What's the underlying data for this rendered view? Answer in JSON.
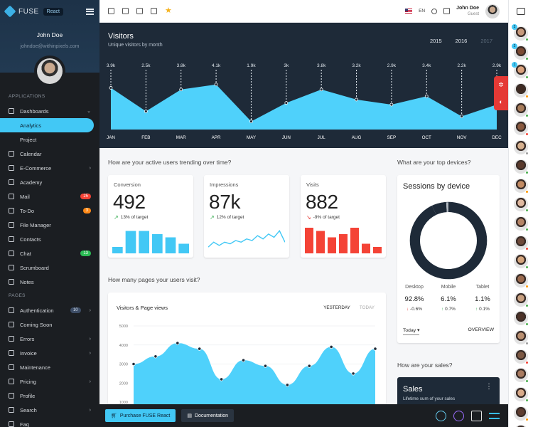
{
  "sidebar": {
    "brand": "FUSE",
    "badge": "React",
    "user_name": "John Doe",
    "user_email": "johndoe@withinpixels.com",
    "section_applications": "APPLICATIONS",
    "section_pages": "PAGES",
    "items": [
      {
        "label": "Dashboards",
        "icon": "dashboard-icon",
        "chevron": "⌄"
      },
      {
        "label": "Analytics",
        "active": true
      },
      {
        "label": "Project"
      },
      {
        "label": "Calendar",
        "icon": "calendar-icon"
      },
      {
        "label": "E-Commerce",
        "icon": "cart-icon",
        "chevron": "›"
      },
      {
        "label": "Academy",
        "icon": "school-icon"
      },
      {
        "label": "Mail",
        "icon": "mail-icon",
        "count": "25"
      },
      {
        "label": "To-Do",
        "icon": "checkbox-icon",
        "count": "3"
      },
      {
        "label": "File Manager",
        "icon": "folder-icon"
      },
      {
        "label": "Contacts",
        "icon": "contacts-icon"
      },
      {
        "label": "Chat",
        "icon": "chat-icon",
        "count": "13"
      },
      {
        "label": "Scrumboard",
        "icon": "board-icon"
      },
      {
        "label": "Notes",
        "icon": "note-icon"
      },
      {
        "label": "Authentication",
        "icon": "lock-icon",
        "count": "10",
        "chevron": "›"
      },
      {
        "label": "Coming Soon",
        "icon": "alarm-icon"
      },
      {
        "label": "Errors",
        "icon": "error-icon",
        "chevron": "›"
      },
      {
        "label": "Invoice",
        "icon": "receipt-icon",
        "chevron": "›"
      },
      {
        "label": "Maintenance",
        "icon": "build-icon"
      },
      {
        "label": "Pricing",
        "icon": "dollar-icon",
        "chevron": "›"
      },
      {
        "label": "Profile",
        "icon": "person-icon"
      },
      {
        "label": "Search",
        "icon": "search-icon",
        "chevron": "›"
      },
      {
        "label": "Faq",
        "icon": "help-icon"
      }
    ]
  },
  "topbar": {
    "lang": "EN",
    "user_name": "John Doe",
    "user_role": "Guest",
    "icons": [
      "calendar-icon",
      "mail-icon",
      "contacts-icon",
      "tasks-icon",
      "star-icon"
    ]
  },
  "visitors": {
    "title": "Visitors",
    "subtitle": "Unique visitors by month",
    "years": [
      "2015",
      "2016",
      "2017"
    ],
    "active_year": "2016"
  },
  "chart_data": [
    {
      "type": "area",
      "categories": [
        "JAN",
        "FEB",
        "MAR",
        "APR",
        "MAY",
        "JUN",
        "JUL",
        "AUG",
        "SEP",
        "OCT",
        "NOV",
        "DEC"
      ],
      "value_labels": [
        "3.9k",
        "2.5k",
        "3.8k",
        "4.1k",
        "1.9k",
        "3k",
        "3.8k",
        "3.2k",
        "2.9k",
        "3.4k",
        "2.2k",
        "2.9k"
      ],
      "values": [
        3.9,
        2.5,
        3.8,
        4.1,
        1.9,
        3.0,
        3.8,
        3.2,
        2.9,
        3.4,
        2.2,
        2.9
      ],
      "color": "#4fd1fb"
    },
    {
      "type": "bar",
      "values": [
        2,
        7,
        7,
        6,
        5,
        3
      ],
      "color": "#42c8f5"
    },
    {
      "type": "line",
      "values": [
        3,
        6,
        4,
        6,
        5,
        7,
        6,
        8,
        7,
        10,
        8,
        11,
        9,
        13,
        6
      ],
      "color": "#42c8f5"
    },
    {
      "type": "bar",
      "values": [
        8,
        7,
        5,
        6,
        8,
        3,
        2
      ],
      "color": "#f44336"
    },
    {
      "type": "pie",
      "categories": [
        "Desktop",
        "Mobile",
        "Tablet"
      ],
      "values": [
        92.8,
        6.1,
        1.1
      ],
      "colors": [
        "#1e2a38",
        "#1e2a38",
        "#b0b7bf"
      ]
    },
    {
      "type": "area",
      "title": "Visitors & Page views",
      "y_ticks": [
        "5000",
        "4000",
        "3000",
        "2000",
        "1000"
      ],
      "ylim": [
        1000,
        5000
      ],
      "values": [
        3000,
        3400,
        4100,
        3800,
        2200,
        3200,
        2900,
        1900,
        2900,
        3900,
        2500,
        3800
      ],
      "color": "#4fd1fb"
    }
  ],
  "users_trend": {
    "question": "How are your active users trending over time?",
    "cards": [
      {
        "label": "Conversion",
        "value": "492",
        "trend": "13% of target",
        "direction": "up"
      },
      {
        "label": "Impressions",
        "value": "87k",
        "trend": "12% of target",
        "direction": "up"
      },
      {
        "label": "Visits",
        "value": "882",
        "trend": "-9% of target",
        "direction": "down"
      }
    ]
  },
  "devices": {
    "question": "What are your top devices?",
    "title": "Sessions by device",
    "stats": [
      {
        "name": "Desktop",
        "value": "92.8%",
        "change": "-0.6%",
        "direction": "down"
      },
      {
        "name": "Mobile",
        "value": "6.1%",
        "change": "0.7%",
        "direction": "up"
      },
      {
        "name": "Tablet",
        "value": "1.1%",
        "change": "0.1%",
        "direction": "up"
      }
    ],
    "range": "Today",
    "overview": "OVERVIEW"
  },
  "pages": {
    "question": "How many pages your users visit?",
    "title": "Visitors & Page views",
    "tabs": [
      "YESTERDAY",
      "TODAY"
    ]
  },
  "sales": {
    "question": "How are your sales?",
    "title": "Sales",
    "subtitle": "Lifetime sum of your sales"
  },
  "footer": {
    "purchase": "Purchase FUSE React",
    "docs": "Documentation"
  },
  "rail": {
    "contacts": [
      {
        "badge": "2",
        "status": "#4caf50",
        "color": "#c79a7c"
      },
      {
        "badge": "2",
        "status": "#4caf50",
        "color": "#7b4a33"
      },
      {
        "badge": "1",
        "status": "#4caf50",
        "color": "#d9a27d"
      },
      {
        "status": "#ff9800",
        "color": "#3f2a22"
      },
      {
        "status": "#4caf50",
        "color": "#a77c5a"
      },
      {
        "status": "#f44336",
        "color": "#8a5a40"
      },
      {
        "status": "#9e9e9e",
        "color": "#d6b08e"
      },
      {
        "status": "#4caf50",
        "color": "#5a3a2c"
      },
      {
        "status": "#ff9800",
        "color": "#c28b63"
      },
      {
        "status": "#4caf50",
        "color": "#e0b9a0"
      },
      {
        "status": "#4caf50",
        "color": "#b58567"
      },
      {
        "status": "#f44336",
        "color": "#6e4a3a"
      },
      {
        "status": "#4caf50",
        "color": "#d4a57d"
      },
      {
        "status": "#ff9800",
        "color": "#9a6a4e"
      },
      {
        "status": "#4caf50",
        "color": "#c8a080"
      },
      {
        "status": "#4caf50",
        "color": "#4d3328"
      },
      {
        "status": "#9e9e9e",
        "color": "#b98f70"
      },
      {
        "status": "#f44336",
        "color": "#7c5843"
      },
      {
        "status": "#4caf50",
        "color": "#a97b60"
      },
      {
        "status": "#4caf50",
        "color": "#d9ab8a"
      },
      {
        "status": "#ff9800",
        "color": "#5e3d30"
      },
      {
        "status": "#4caf50",
        "color": "#c0916f"
      }
    ]
  }
}
